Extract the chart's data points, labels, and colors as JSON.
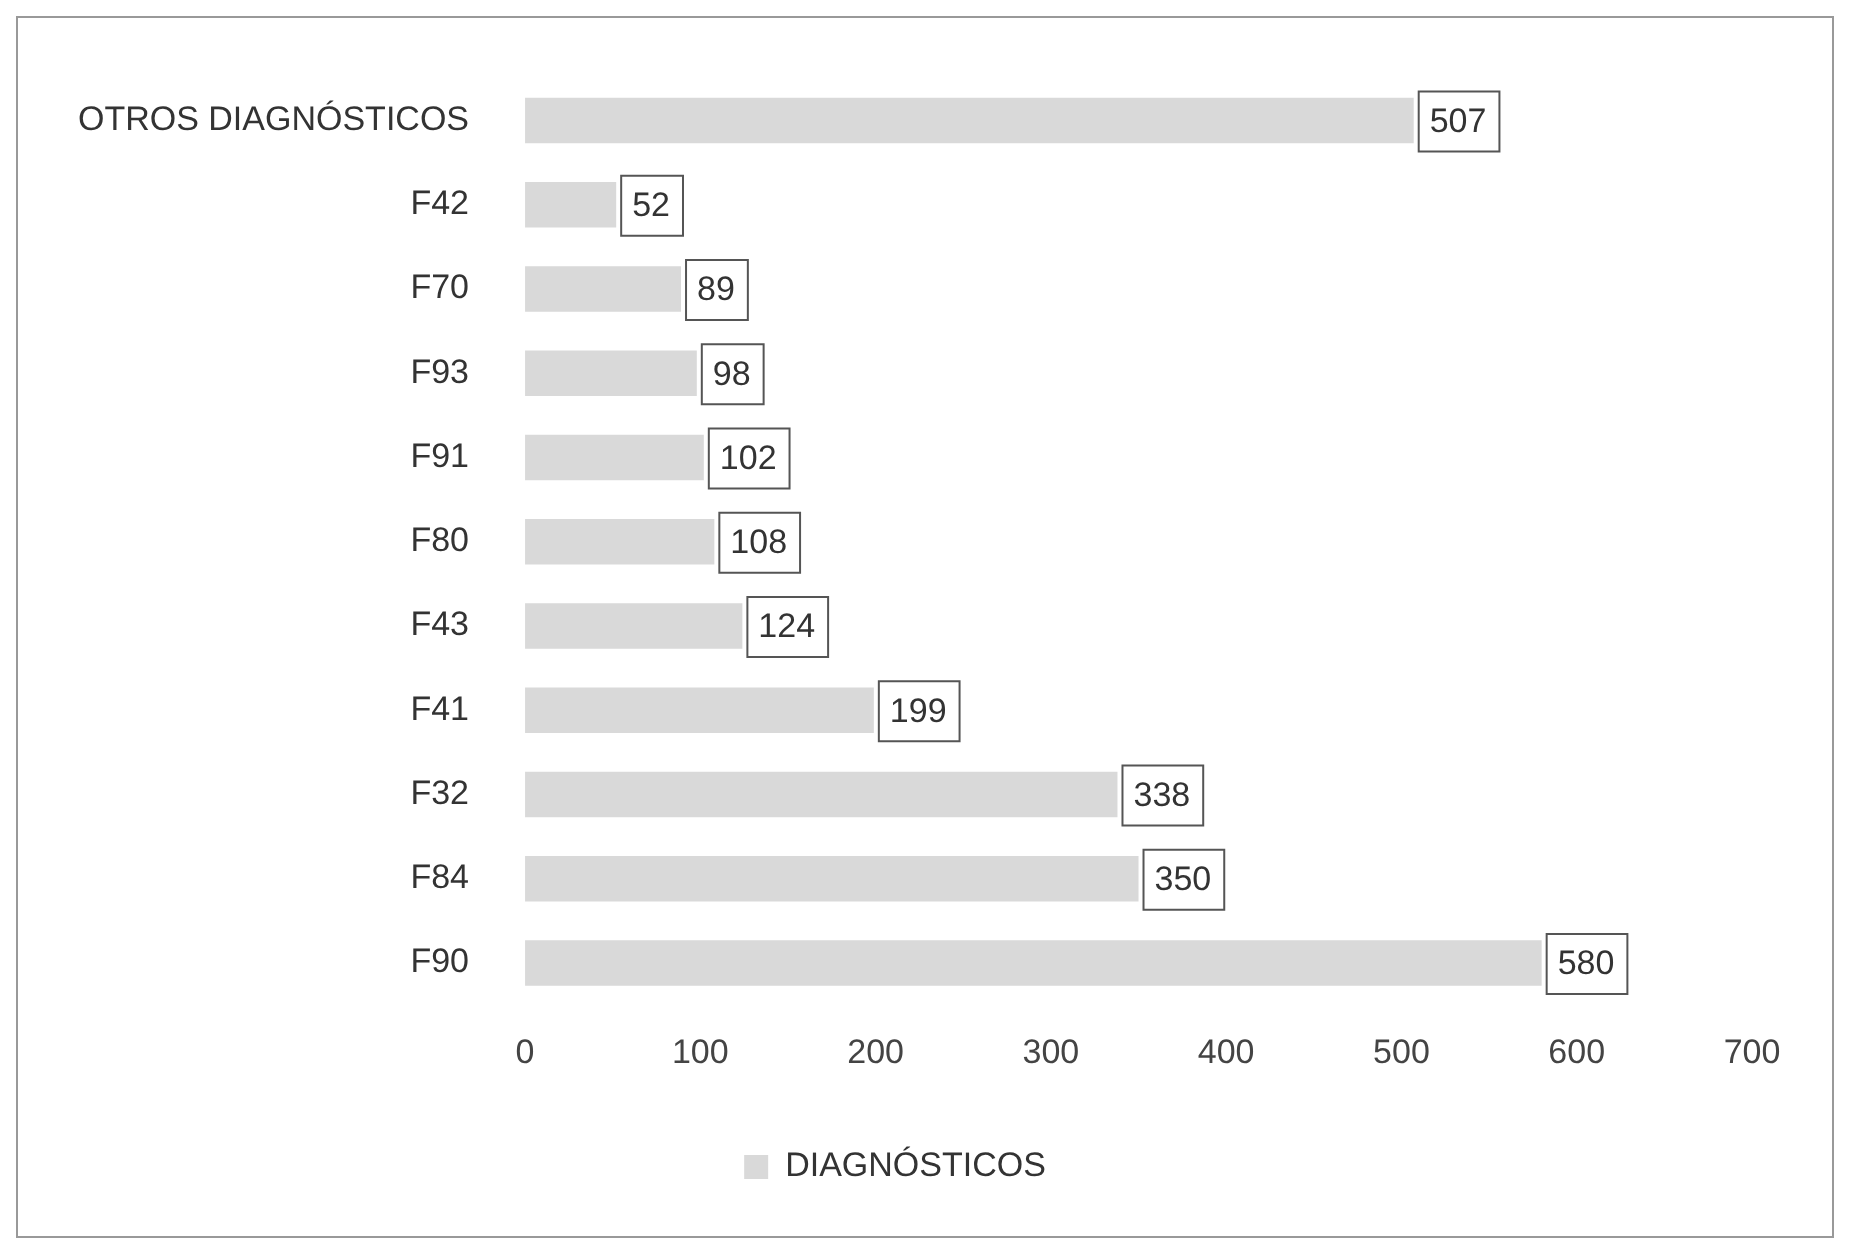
{
  "chart_data": {
    "type": "bar",
    "orientation": "horizontal",
    "categories": [
      "OTROS DIAGNÓSTICOS",
      "F42",
      "F70",
      "F93",
      "F91",
      "F80",
      "F43",
      "F41",
      "F32",
      "F84",
      "F90"
    ],
    "series": [
      {
        "name": "DIAGNÓSTICOS",
        "color": "#d9d9d9",
        "values": [
          507,
          52,
          89,
          98,
          102,
          108,
          124,
          199,
          338,
          350,
          580
        ]
      }
    ],
    "xlim": [
      0,
      700
    ],
    "xticks": [
      0,
      100,
      200,
      300,
      400,
      500,
      600,
      700
    ],
    "grid": false,
    "legend": "bottom",
    "data_labels": true
  }
}
